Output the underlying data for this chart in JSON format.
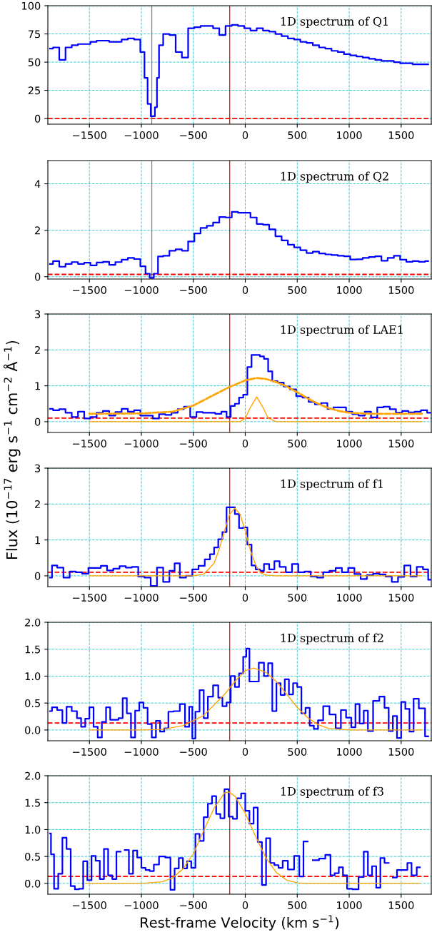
{
  "chart_data": [
    {
      "type": "step",
      "title": "1D spectrum of Q1",
      "xlim": [
        -1900,
        1790
      ],
      "ylim": [
        -5,
        100
      ],
      "xticks": [
        {
          "value": -1500,
          "label": "−1500"
        },
        {
          "value": -1000,
          "label": "−1000"
        },
        {
          "value": -500,
          "label": "−500"
        },
        0,
        500,
        1000,
        1500
      ],
      "yticks": [
        0,
        25,
        50,
        75,
        100
      ],
      "grid": true,
      "ref_lines": [
        {
          "axis": "y",
          "value": 0,
          "color": "#ff0000",
          "line_style": "dashed"
        },
        {
          "axis": "x",
          "value": -150,
          "color": "#ff0000",
          "line_style": "solid"
        },
        {
          "axis": "x",
          "value": -900,
          "color": "#808080",
          "line_style": "solid"
        }
      ],
      "series": [
        {
          "color": "#0000ff",
          "x": [
            -1880,
            -1820,
            -1760,
            -1700,
            -1640,
            -1580,
            -1520,
            -1460,
            -1400,
            -1340,
            -1280,
            -1220,
            -1160,
            -1100,
            -1040,
            -980,
            -960,
            -920,
            -900,
            -880,
            -860,
            -840,
            -820,
            -760,
            -700,
            -640,
            -580,
            -520,
            -460,
            -400,
            -340,
            -280,
            -220,
            -160,
            -100,
            -40,
            20,
            80,
            140,
            200,
            260,
            320,
            380,
            440,
            500,
            560,
            620,
            680,
            740,
            800,
            860,
            920,
            980,
            1040,
            1100,
            1160,
            1220,
            1280,
            1340,
            1400,
            1460,
            1520,
            1580,
            1640,
            1700,
            1760
          ],
          "values": [
            62,
            63,
            52,
            63,
            65,
            66,
            66,
            68,
            69,
            69,
            68,
            68,
            70,
            71,
            70,
            59,
            36,
            13,
            2,
            2,
            10,
            36,
            65,
            75,
            74,
            59,
            54,
            80,
            81,
            82,
            82,
            80,
            74,
            82,
            83,
            82,
            80,
            78,
            80,
            78,
            77,
            75,
            73,
            71,
            70,
            68,
            67,
            65,
            63,
            62,
            60,
            59,
            57,
            56,
            55,
            54,
            53,
            52,
            51,
            51,
            50,
            49,
            49,
            48,
            48,
            48
          ]
        }
      ]
    },
    {
      "type": "step",
      "title": "1D spectrum of Q2",
      "xlim": [
        -1900,
        1790
      ],
      "ylim": [
        -0.1,
        5
      ],
      "xticks": [
        {
          "value": -1500,
          "label": "−1500"
        },
        {
          "value": -1000,
          "label": "−1000"
        },
        {
          "value": -500,
          "label": "−500"
        },
        0,
        500,
        1000,
        1500
      ],
      "yticks": [
        0,
        2,
        4
      ],
      "grid": true,
      "ref_lines": [
        {
          "axis": "y",
          "value": 0.1,
          "color": "#ff0000",
          "line_style": "dashed"
        },
        {
          "axis": "x",
          "value": -150,
          "color": "#ff0000",
          "line_style": "solid"
        },
        {
          "axis": "x",
          "value": -900,
          "color": "#808080",
          "line_style": "solid"
        }
      ],
      "series": [
        {
          "color": "#0000ff",
          "x": [
            -1880,
            -1820,
            -1760,
            -1700,
            -1640,
            -1580,
            -1520,
            -1460,
            -1400,
            -1340,
            -1280,
            -1220,
            -1160,
            -1100,
            -1040,
            -980,
            -940,
            -900,
            -860,
            -820,
            -760,
            -700,
            -640,
            -580,
            -520,
            -460,
            -400,
            -340,
            -280,
            -220,
            -160,
            -100,
            -40,
            20,
            80,
            140,
            200,
            260,
            320,
            380,
            440,
            500,
            560,
            620,
            680,
            740,
            800,
            860,
            920,
            980,
            1040,
            1100,
            1160,
            1220,
            1280,
            1340,
            1400,
            1460,
            1520,
            1580,
            1640,
            1700,
            1760
          ],
          "values": [
            0.55,
            0.67,
            0.43,
            0.55,
            0.63,
            0.55,
            0.6,
            0.49,
            0.61,
            0.64,
            0.51,
            0.63,
            0.73,
            0.81,
            0.76,
            0.45,
            0.13,
            -0.05,
            0.13,
            0.87,
            0.9,
            1.12,
            1.18,
            1.12,
            1.52,
            1.86,
            2.1,
            2.19,
            2.33,
            2.57,
            2.55,
            2.79,
            2.75,
            2.75,
            2.55,
            2.27,
            2.24,
            2.04,
            1.74,
            1.56,
            1.38,
            1.26,
            1.14,
            1.02,
            1.08,
            1.0,
            0.96,
            0.93,
            0.9,
            0.88,
            0.74,
            0.75,
            0.81,
            0.85,
            0.88,
            0.69,
            0.81,
            0.9,
            0.73,
            0.64,
            0.67,
            0.64,
            0.67
          ]
        }
      ]
    },
    {
      "type": "step",
      "title": "1D spectrum of LAE1",
      "xlim": [
        -1900,
        1790
      ],
      "ylim": [
        -0.3,
        3
      ],
      "xticks": [
        {
          "value": -1500,
          "label": "−1500"
        },
        {
          "value": -1000,
          "label": "−1000"
        },
        {
          "value": -500,
          "label": "−500"
        },
        0,
        500,
        1000,
        1500
      ],
      "yticks": [
        0,
        1,
        2,
        3
      ],
      "grid": true,
      "ref_lines": [
        {
          "axis": "y",
          "value": 0.1,
          "color": "#ff0000",
          "line_style": "dashed"
        },
        {
          "axis": "x",
          "value": -150,
          "color": "#ff0000",
          "line_style": "solid"
        }
      ],
      "series": [
        {
          "color": "#0000ff",
          "x": [
            -1880,
            -1820,
            -1760,
            -1700,
            -1640,
            -1580,
            -1520,
            -1460,
            -1400,
            -1340,
            -1280,
            -1220,
            -1160,
            -1100,
            -1040,
            -980,
            -920,
            -860,
            -800,
            -740,
            -680,
            -620,
            -560,
            -500,
            -440,
            -380,
            -320,
            -260,
            -200,
            -160,
            -120,
            -80,
            -40,
            0,
            40,
            80,
            120,
            160,
            200,
            240,
            280,
            340,
            400,
            460,
            520,
            580,
            640,
            700,
            760,
            820,
            880,
            940,
            1000,
            1060,
            1120,
            1180,
            1240,
            1300,
            1360,
            1420,
            1480,
            1540,
            1600,
            1660,
            1720,
            1780
          ],
          "values": [
            0.36,
            0.32,
            0.35,
            0.25,
            0.13,
            0.28,
            0.09,
            0.13,
            0.25,
            0.3,
            0.17,
            0.27,
            0.36,
            0.28,
            0.32,
            0.17,
            0.17,
            0.09,
            0.21,
            0.19,
            0.25,
            0.35,
            0.42,
            0.13,
            0.27,
            0.25,
            0.25,
            0.22,
            0.28,
            0.13,
            0.44,
            0.5,
            0.67,
            0.75,
            1.52,
            1.86,
            1.86,
            1.82,
            1.75,
            1.4,
            1.13,
            1.09,
            0.98,
            0.9,
            0.71,
            0.67,
            0.55,
            0.48,
            0.52,
            0.36,
            0.4,
            0.4,
            0.28,
            0.21,
            0.17,
            0.28,
            0.12,
            0.4,
            0.42,
            0.35,
            0.25,
            0.3,
            0.26,
            0.28,
            0.32,
            0.25
          ]
        },
        {
          "type": "line",
          "color": "#ffa500",
          "line_style": "dashed",
          "x": [
            -1500,
            -1000,
            -700,
            -500,
            -300,
            -150,
            0,
            110,
            200,
            300,
            400,
            500,
            600,
            700,
            800,
            900,
            1000,
            1200,
            1700
          ],
          "values": [
            0.22,
            0.23,
            0.28,
            0.45,
            0.75,
            0.97,
            1.15,
            1.22,
            1.19,
            1.1,
            0.98,
            0.82,
            0.65,
            0.5,
            0.38,
            0.3,
            0.25,
            0.22,
            0.22
          ]
        },
        {
          "type": "line",
          "color": "#ffa500",
          "line_style": "solid",
          "x": [
            -1500,
            -50,
            0,
            50,
            110,
            170,
            220,
            300,
            1700
          ],
          "values": [
            0,
            0,
            0.1,
            0.4,
            0.69,
            0.4,
            0.1,
            0,
            0
          ]
        }
      ]
    },
    {
      "type": "step",
      "title": "1D spectrum of f1",
      "ylabel": "Flux (10$^{−17}$ erg s$^{−1}$ cm$^{−2}$ Å$^{−1}$)",
      "xlim": [
        -1900,
        1790
      ],
      "ylim": [
        -0.3,
        3
      ],
      "xticks": [
        {
          "value": -1500,
          "label": "−1500"
        },
        {
          "value": -1000,
          "label": "−1000"
        },
        {
          "value": -500,
          "label": "−500"
        },
        0,
        500,
        1000,
        1500
      ],
      "yticks": [
        0,
        1,
        2,
        3
      ],
      "grid": true,
      "ref_lines": [
        {
          "axis": "y",
          "value": 0.1,
          "color": "#ff0000",
          "line_style": "dashed"
        },
        {
          "axis": "x",
          "value": -150,
          "color": "#ff0000",
          "line_style": "solid"
        }
      ],
      "series": [
        {
          "color": "#0000ff",
          "x": [
            -1880,
            -1840,
            -1780,
            -1720,
            -1660,
            -1600,
            -1540,
            -1480,
            -1420,
            -1360,
            -1300,
            -1240,
            -1180,
            -1120,
            -1060,
            -1000,
            -940,
            -880,
            -820,
            -760,
            -700,
            -660,
            -600,
            -540,
            -480,
            -420,
            -360,
            -320,
            -280,
            -240,
            -200,
            -160,
            -120,
            -80,
            -40,
            0,
            40,
            80,
            120,
            160,
            200,
            260,
            300,
            360,
            420,
            480,
            540,
            600,
            660,
            720,
            780,
            840,
            900,
            960,
            1020,
            1080,
            1140,
            1200,
            1260,
            1320,
            1380,
            1440,
            1500,
            1560,
            1620,
            1680,
            1740,
            1780
          ],
          "values": [
            -0.05,
            0.29,
            0.23,
            -0.05,
            0.12,
            0.1,
            0.06,
            0.22,
            0.22,
            0.28,
            0.15,
            0.2,
            0.27,
            0.23,
            0.25,
            -0.02,
            -0.05,
            -0.28,
            0.23,
            -0.17,
            0.14,
            0.35,
            -0.05,
            0.0,
            0.18,
            0.28,
            0.46,
            0.6,
            0.79,
            1.02,
            1.22,
            1.91,
            1.91,
            1.72,
            1.33,
            1.35,
            0.87,
            0.29,
            0.18,
            0.14,
            0.33,
            0.18,
            0.41,
            0.25,
            0.1,
            0.33,
            0.1,
            0.12,
            -0.02,
            -0.05,
            0.1,
            0.14,
            0.22,
            0.1,
            0.22,
            0.05,
            -0.09,
            0.02,
            0.06,
            0.04,
            -0.02,
            -0.17,
            -0.03,
            0.29,
            -0.02,
            0.25,
            0.18,
            -0.11
          ]
        },
        {
          "type": "line",
          "color": "#ffa500",
          "line_style": "solid",
          "x": [
            -1500,
            -500,
            -400,
            -300,
            -250,
            -200,
            -150,
            -100,
            -50,
            0,
            50,
            100,
            150,
            200,
            300,
            1700
          ],
          "values": [
            0,
            0,
            0.05,
            0.35,
            0.75,
            1.25,
            1.72,
            1.88,
            1.72,
            1.25,
            0.7,
            0.3,
            0.08,
            0.02,
            0,
            0
          ]
        }
      ]
    },
    {
      "type": "step",
      "title": "1D spectrum of f2",
      "xlim": [
        -1900,
        1790
      ],
      "ylim": [
        -0.2,
        2
      ],
      "xticks": [
        {
          "value": -1500,
          "label": "−1500"
        },
        {
          "value": -1000,
          "label": "−1000"
        },
        {
          "value": -500,
          "label": "−500"
        },
        0,
        500,
        1000,
        1500
      ],
      "yticks": [
        {
          "value": 0,
          "label": "0.0"
        },
        {
          "value": 0.5,
          "label": "0.5"
        },
        {
          "value": 1,
          "label": "1.0"
        },
        {
          "value": 1.5,
          "label": "1.5"
        },
        {
          "value": 2,
          "label": "2.0"
        }
      ],
      "grid": true,
      "ref_lines": [
        {
          "axis": "y",
          "value": 0.13,
          "color": "#ff0000",
          "line_style": "dashed"
        },
        {
          "axis": "x",
          "value": -150,
          "color": "#ff0000",
          "line_style": "solid"
        }
      ],
      "series": [
        {
          "color": "#0000ff",
          "x": [
            -1880,
            -1840,
            -1780,
            -1740,
            -1700,
            -1640,
            -1600,
            -1560,
            -1520,
            -1480,
            -1440,
            -1400,
            -1360,
            -1320,
            -1280,
            -1240,
            -1200,
            -1160,
            -1120,
            -1080,
            -1040,
            -1000,
            -960,
            -920,
            -880,
            -840,
            -800,
            -760,
            -720,
            -660,
            -600,
            -560,
            -520,
            -500,
            -460,
            -420,
            -380,
            -340,
            -280,
            -240,
            -200,
            -160,
            -120,
            -80,
            -40,
            0,
            20,
            60,
            100,
            160,
            200,
            240,
            280,
            320,
            360,
            400,
            440,
            480,
            520,
            560,
            600,
            640,
            680,
            720,
            780,
            840,
            900,
            940,
            1000,
            1040,
            1080,
            1120,
            1160,
            1200,
            1260,
            1320,
            1360,
            1400,
            1440,
            1480,
            1520,
            1560,
            1600,
            1640,
            1700,
            1760
          ],
          "values": [
            0.35,
            0.42,
            0.37,
            0.13,
            0.43,
            0.35,
            0.22,
            0.06,
            0.21,
            0.42,
            0.06,
            -0.14,
            0.15,
            0.42,
            0.19,
            0.19,
            0.22,
            0.59,
            0.31,
            -0.14,
            0.36,
            0.51,
            0.41,
            0.11,
            -0.14,
            0.17,
            -0.03,
            0.03,
            0.34,
            0.35,
            0.48,
            0.06,
            0.43,
            -0.16,
            0.34,
            0.74,
            0.22,
            0.62,
            0.83,
            0.6,
            0.44,
            0.51,
            1.0,
            0.8,
            1.05,
            1.36,
            1.51,
            0.9,
            0.9,
            1.25,
            1.0,
            1.24,
            0.35,
            0.87,
            0.65,
            0.94,
            0.66,
            0.87,
            0.8,
            0.31,
            0.41,
            0.08,
            0.02,
            0.18,
            0.44,
            0.29,
            0.03,
            0.37,
            0.23,
            0.05,
            0.48,
            0.12,
            0.36,
            -0.02,
            0.54,
            0.62,
            0.41,
            -0.02,
            0.26,
            -0.15,
            0.52,
            0.39,
            -0.03,
            0.58,
            0.4,
            -0.12
          ]
        },
        {
          "type": "line",
          "color": "#ffa500",
          "line_style": "solid",
          "x": [
            -1500,
            -1000,
            -800,
            -600,
            -400,
            -200,
            -100,
            0,
            80,
            200,
            300,
            400,
            500,
            600,
            700,
            800,
            1000,
            1700
          ],
          "values": [
            0,
            0,
            0.01,
            0.08,
            0.27,
            0.66,
            0.9,
            1.1,
            1.15,
            1.07,
            0.9,
            0.66,
            0.42,
            0.23,
            0.1,
            0.03,
            0,
            0
          ]
        }
      ]
    },
    {
      "type": "step",
      "title": "1D spectrum of f3",
      "xlabel": "Rest-frame Velocity (km s$^{−1}$)",
      "xlim": [
        -1900,
        1790
      ],
      "ylim": [
        -0.2,
        2
      ],
      "xticks": [
        {
          "value": -1500,
          "label": "−1500"
        },
        {
          "value": -1000,
          "label": "−1000"
        },
        {
          "value": -500,
          "label": "−500"
        },
        0,
        500,
        1000,
        1500
      ],
      "yticks": [
        {
          "value": 0,
          "label": "0.0"
        },
        {
          "value": 0.5,
          "label": "0.5"
        },
        {
          "value": 1,
          "label": "1.0"
        },
        {
          "value": 1.5,
          "label": "1.5"
        },
        {
          "value": 2,
          "label": "2.0"
        }
      ],
      "grid": true,
      "ref_lines": [
        {
          "axis": "y",
          "value": 0.13,
          "color": "#ff0000",
          "line_style": "dashed"
        },
        {
          "axis": "x",
          "value": -150,
          "color": "#ff0000",
          "line_style": "solid"
        }
      ],
      "series": [
        {
          "color": "#0000ff",
          "x": [
            -1880,
            -1860,
            -1820,
            -1780,
            -1740,
            -1700,
            -1660,
            -1620,
            -1580,
            -1540,
            -1500,
            -1460,
            -1420,
            -1380,
            -1340,
            -1300,
            -1260,
            -1220,
            -1180,
            -1140,
            -1100,
            -1060,
            -1020,
            -980,
            -940,
            -900,
            -860,
            -800,
            -740,
            -700,
            -660,
            -620,
            -580,
            -540,
            -500,
            -460,
            -420,
            -380,
            -340,
            -300,
            -260,
            -220,
            -180,
            -140,
            -100,
            -60,
            -20,
            20,
            60,
            100,
            140,
            180,
            220,
            260,
            300,
            340,
            380,
            440,
            500,
            540,
            580,
            620,
            680,
            740,
            800,
            840,
            880,
            920,
            960,
            1000,
            1060,
            1120,
            1160,
            1200,
            1240,
            1280,
            1320,
            1360,
            1400,
            1440,
            1480,
            1540,
            1580,
            1620,
            1680
          ],
          "values": [
            0.93,
            0.54,
            -0.1,
            0.18,
            0.85,
            0.64,
            -0.05,
            -0.11,
            -0.1,
            0.41,
            0.06,
            0.51,
            0.42,
            0.08,
            0.64,
            0.15,
            0.08,
            0.59,
            null,
            0.62,
            0.18,
            0.61,
            0.48,
            0.29,
            0.25,
            0.23,
            0.35,
            0.5,
            0.48,
            -0.12,
            0.28,
            0.47,
            0.28,
            0.41,
            0.29,
            0.92,
            0.79,
            1.23,
            1.48,
            1.62,
            1.29,
            1.21,
            1.75,
            1.24,
            1.2,
            1.58,
            1.67,
            1.35,
            1.11,
            1.41,
            0.77,
            -0.03,
            0.84,
            0.38,
            0.34,
            0.29,
            0.42,
            0.26,
            0.51,
            0.13,
            0.78,
            null,
            0.43,
            0.46,
            0.53,
            0.15,
            0.19,
            0.3,
            0.15,
            -0.1,
            -0.11,
            0.12,
            0.59,
            0.15,
            0.32,
            -0.08,
            0.47,
            0.38,
            null,
            0.11,
            0.25,
            0.25,
            0.38,
            0.15,
            0.3
          ]
        },
        {
          "type": "line",
          "color": "#ffa500",
          "line_style": "solid",
          "x": [
            -1530,
            -1000,
            -800,
            -700,
            -600,
            -500,
            -400,
            -300,
            -200,
            -160,
            -100,
            0,
            100,
            200,
            300,
            400,
            500,
            600,
            1680
          ],
          "values": [
            0,
            0,
            0.03,
            0.1,
            0.27,
            0.55,
            0.98,
            1.4,
            1.68,
            1.7,
            1.62,
            1.3,
            0.87,
            0.47,
            0.2,
            0.06,
            0.01,
            0,
            0
          ]
        }
      ]
    }
  ]
}
